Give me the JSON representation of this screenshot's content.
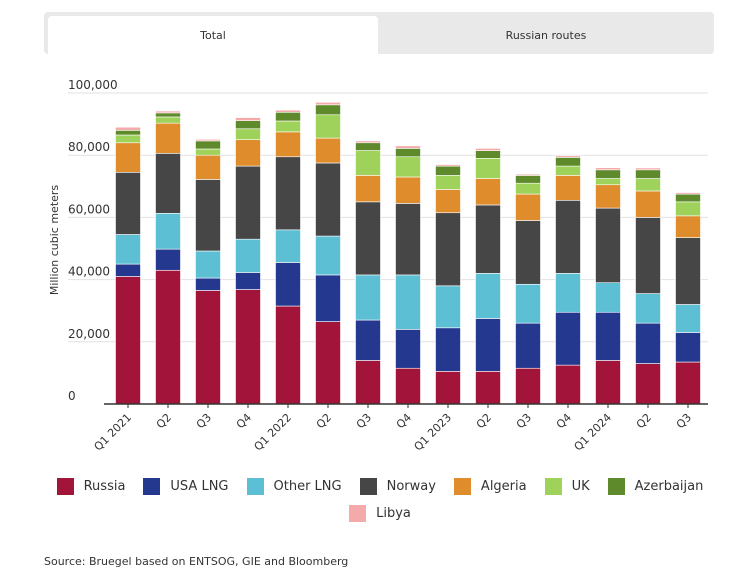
{
  "tabs": [
    {
      "label": "Total",
      "active": true
    },
    {
      "label": "Russian routes",
      "active": false
    }
  ],
  "source": "Source: Bruegel based on ENTSOG, GIE and Bloomberg",
  "chart_data": {
    "type": "bar",
    "stacked": true,
    "ylabel": "Million cubic meters",
    "ylim": [
      0,
      100000
    ],
    "yticks": [
      "0",
      "20,000",
      "40,000",
      "60,000",
      "80,000",
      "100,000"
    ],
    "ytick_values": [
      0,
      20000,
      40000,
      60000,
      80000,
      100000
    ],
    "grid": true,
    "legend_position": "bottom",
    "categories": [
      "Q1 2021",
      "Q2",
      "Q3",
      "Q4",
      "Q1 2022",
      "Q2",
      "Q3",
      "Q4",
      "Q1 2023",
      "Q2",
      "Q3",
      "Q4",
      "Q1 2024",
      "Q2",
      "Q3"
    ],
    "series": [
      {
        "name": "Russia",
        "color": "#a3143a",
        "values": [
          41000,
          43000,
          36500,
          36800,
          31500,
          26500,
          14000,
          11500,
          10500,
          10500,
          11500,
          12500,
          14000,
          13000,
          13500
        ]
      },
      {
        "name": "USA LNG",
        "color": "#24388f",
        "values": [
          4000,
          6800,
          4000,
          5500,
          14000,
          15000,
          13000,
          12500,
          14000,
          17000,
          14500,
          17000,
          15500,
          13000,
          9500
        ]
      },
      {
        "name": "Other LNG",
        "color": "#5cbfd4",
        "values": [
          9500,
          11500,
          8700,
          10700,
          10500,
          12500,
          14500,
          17500,
          13500,
          14500,
          12500,
          12500,
          9500,
          9500,
          9000
        ]
      },
      {
        "name": "Norway",
        "color": "#464646",
        "values": [
          20000,
          19300,
          23000,
          23500,
          23500,
          23500,
          23500,
          23000,
          23500,
          22000,
          20500,
          23500,
          24000,
          24500,
          21500
        ]
      },
      {
        "name": "Algeria",
        "color": "#df8d2c",
        "values": [
          9500,
          9700,
          7800,
          8500,
          8000,
          8000,
          8500,
          8500,
          7500,
          8500,
          8500,
          8000,
          7500,
          8500,
          7000
        ]
      },
      {
        "name": "UK",
        "color": "#9fd25a",
        "values": [
          2500,
          2000,
          2000,
          3500,
          3500,
          7500,
          8000,
          6500,
          4500,
          6500,
          3500,
          3000,
          2000,
          4000,
          4500
        ]
      },
      {
        "name": "Azerbaijan",
        "color": "#5f8a2c",
        "values": [
          1500,
          1300,
          2600,
          2600,
          2800,
          3200,
          2500,
          2700,
          3000,
          2500,
          2500,
          2800,
          2800,
          2800,
          2500
        ]
      },
      {
        "name": "Libya",
        "color": "#f4a9aa",
        "values": [
          1000,
          600,
          500,
          1000,
          700,
          800,
          600,
          800,
          500,
          700,
          400,
          500,
          700,
          600,
          500
        ]
      }
    ]
  }
}
